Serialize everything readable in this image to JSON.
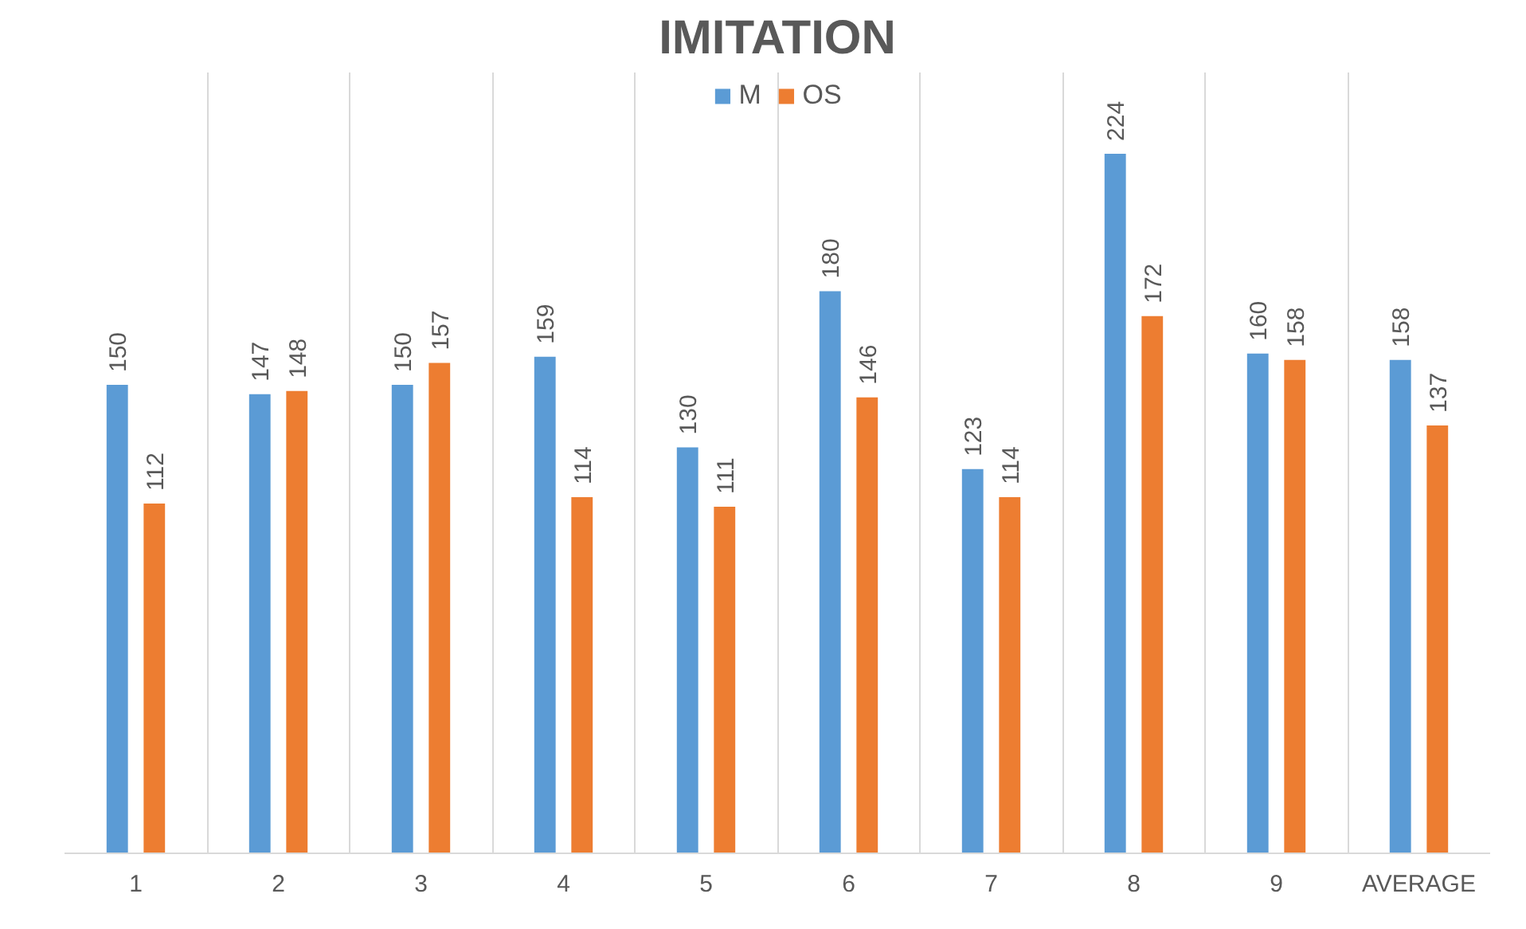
{
  "chart_data": {
    "type": "bar",
    "title": "IMITATION",
    "categories": [
      "1",
      "2",
      "3",
      "4",
      "5",
      "6",
      "7",
      "8",
      "9",
      "AVERAGE"
    ],
    "series": [
      {
        "name": "M",
        "color": "#5b9bd5",
        "values": [
          150,
          147,
          150,
          159,
          130,
          180,
          123,
          224,
          160,
          158
        ]
      },
      {
        "name": "OS",
        "color": "#ed7d31",
        "values": [
          112,
          148,
          157,
          114,
          111,
          146,
          114,
          172,
          158,
          137
        ]
      }
    ],
    "ylim": [
      0,
      250
    ],
    "data_labels": true,
    "grid": "x",
    "legend": "top",
    "tick_labels": "x"
  }
}
